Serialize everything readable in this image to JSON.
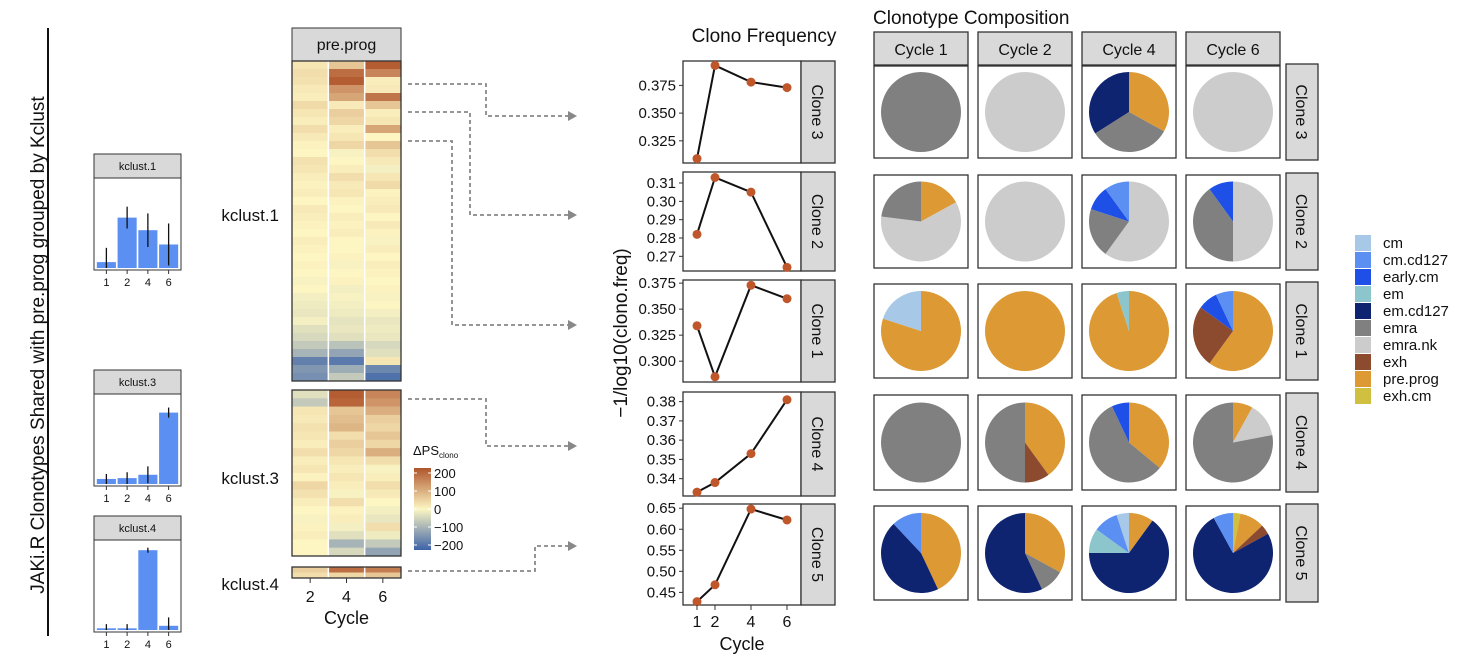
{
  "figure_title": "JAKi.R Clonotypes Shared with pre.prog grouped by Kclust",
  "colors": {
    "bar": "#5b8ff2",
    "point": "#c0572b",
    "strip_fill": "#d9d9d9",
    "heat_high": "#b0552b",
    "heat_mid": "#fdf6c3",
    "heat_low": "#3d63a8"
  },
  "chart_data": [
    {
      "type": "bar",
      "title": "kclust.1",
      "categories": [
        "1",
        "2",
        "4",
        "6"
      ],
      "values": [
        0.07,
        0.6,
        0.45,
        0.28
      ],
      "errors": [
        0.17,
        0.13,
        0.2,
        0.25
      ],
      "ylim": [
        0,
        1
      ]
    },
    {
      "type": "bar",
      "title": "kclust.3",
      "categories": [
        "1",
        "2",
        "4",
        "6"
      ],
      "values": [
        0.06,
        0.07,
        0.11,
        0.85
      ],
      "errors": [
        0.06,
        0.07,
        0.1,
        0.06
      ],
      "ylim": [
        0,
        1
      ]
    },
    {
      "type": "bar",
      "title": "kclust.4",
      "categories": [
        "1",
        "2",
        "4",
        "6"
      ],
      "values": [
        0.02,
        0.02,
        0.95,
        0.05
      ],
      "errors": [
        0.05,
        0.05,
        0.03,
        0.1
      ],
      "ylim": [
        0,
        1
      ]
    },
    {
      "type": "heatmap",
      "strip": "pre.prog",
      "xlabel": "Cycle",
      "x": [
        "2",
        "4",
        "6"
      ],
      "row_groups": [
        {
          "label": "kclust.1",
          "rows": 40
        },
        {
          "label": "kclust.3",
          "rows": 20
        },
        {
          "label": "kclust.4",
          "rows": 2
        }
      ],
      "legend_title": "ΔPS",
      "legend_title_sub": "clono",
      "legend_ticks": [
        "200",
        "100",
        "0",
        "−100",
        "−200"
      ],
      "range": [
        -200,
        200
      ],
      "values": [
        [
          20,
          60,
          190
        ],
        [
          30,
          170,
          140
        ],
        [
          25,
          190,
          10
        ],
        [
          15,
          120,
          15
        ],
        [
          10,
          100,
          160
        ],
        [
          35,
          15,
          60
        ],
        [
          20,
          50,
          10
        ],
        [
          10,
          40,
          20
        ],
        [
          30,
          10,
          100
        ],
        [
          15,
          20,
          0
        ],
        [
          5,
          40,
          60
        ],
        [
          0,
          -5,
          30
        ],
        [
          25,
          0,
          15
        ],
        [
          20,
          10,
          -10
        ],
        [
          10,
          30,
          20
        ],
        [
          5,
          15,
          35
        ],
        [
          10,
          20,
          5
        ],
        [
          0,
          5,
          10
        ],
        [
          15,
          0,
          15
        ],
        [
          10,
          10,
          0
        ],
        [
          5,
          5,
          15
        ],
        [
          0,
          10,
          5
        ],
        [
          10,
          0,
          -5
        ],
        [
          5,
          0,
          10
        ],
        [
          0,
          5,
          0
        ],
        [
          5,
          -5,
          10
        ],
        [
          0,
          0,
          5
        ],
        [
          -5,
          5,
          0
        ],
        [
          0,
          -10,
          5
        ],
        [
          -10,
          -5,
          -5
        ],
        [
          -15,
          -10,
          0
        ],
        [
          -20,
          -15,
          -10
        ],
        [
          -10,
          -25,
          -20
        ],
        [
          -30,
          -20,
          -15
        ],
        [
          -40,
          -30,
          -20
        ],
        [
          -60,
          -70,
          -40
        ],
        [
          -90,
          -110,
          -30
        ],
        [
          -160,
          -170,
          20
        ],
        [
          -130,
          -100,
          -150
        ],
        [
          -140,
          -60,
          -180
        ],
        [
          -30,
          190,
          140
        ],
        [
          -60,
          180,
          120
        ],
        [
          20,
          60,
          90
        ],
        [
          15,
          70,
          50
        ],
        [
          25,
          80,
          40
        ],
        [
          20,
          30,
          60
        ],
        [
          10,
          50,
          40
        ],
        [
          30,
          40,
          90
        ],
        [
          10,
          20,
          30
        ],
        [
          20,
          10,
          -5
        ],
        [
          5,
          20,
          10
        ],
        [
          40,
          10,
          30
        ],
        [
          25,
          -5,
          15
        ],
        [
          10,
          30,
          0
        ],
        [
          0,
          5,
          -10
        ],
        [
          -5,
          10,
          -20
        ],
        [
          5,
          -10,
          30
        ],
        [
          10,
          -30,
          -15
        ],
        [
          0,
          -90,
          -60
        ],
        [
          0,
          -40,
          -110
        ],
        [
          50,
          170,
          150
        ],
        [
          30,
          40,
          60
        ]
      ]
    },
    {
      "type": "line",
      "title": "Clono Frequency",
      "xlabel": "Cycle",
      "ylabel": "−1/log10(clono.freq)",
      "x": [
        1,
        2,
        4,
        6
      ],
      "panels": [
        {
          "strip": "Clone 3",
          "y": [
            0.309,
            0.393,
            0.378,
            0.373
          ],
          "ylim": [
            0.305,
            0.397
          ],
          "ticks": [
            "0.375",
            "0.350",
            "0.325"
          ],
          "tick_values": [
            0.375,
            0.35,
            0.325
          ]
        },
        {
          "strip": "Clone 2",
          "y": [
            0.282,
            0.313,
            0.305,
            0.264
          ],
          "ylim": [
            0.262,
            0.316
          ],
          "ticks": [
            "0.31",
            "0.30",
            "0.29",
            "0.28",
            "0.27"
          ],
          "tick_values": [
            0.31,
            0.3,
            0.29,
            0.28,
            0.27
          ]
        },
        {
          "strip": "Clone 1",
          "y": [
            0.334,
            0.285,
            0.373,
            0.36
          ],
          "ylim": [
            0.28,
            0.378
          ],
          "ticks": [
            "0.375",
            "0.350",
            "0.325",
            "0.300"
          ],
          "tick_values": [
            0.375,
            0.35,
            0.325,
            0.3
          ]
        },
        {
          "strip": "Clone 4",
          "y": [
            0.333,
            0.338,
            0.353,
            0.381
          ],
          "ylim": [
            0.331,
            0.385
          ],
          "ticks": [
            "0.38",
            "0.37",
            "0.36",
            "0.35",
            "0.34"
          ],
          "tick_values": [
            0.38,
            0.37,
            0.36,
            0.35,
            0.34
          ]
        },
        {
          "strip": "Clone 5",
          "y": [
            0.428,
            0.468,
            0.648,
            0.622
          ],
          "ylim": [
            0.42,
            0.66
          ],
          "ticks": [
            "0.65",
            "0.60",
            "0.55",
            "0.50",
            "0.45"
          ],
          "tick_values": [
            0.65,
            0.6,
            0.55,
            0.5,
            0.45
          ]
        }
      ]
    },
    {
      "type": "pie",
      "title": "Clonotype Composition",
      "columns": [
        "Cycle 1",
        "Cycle 2",
        "Cycle 4",
        "Cycle 6"
      ],
      "rows": [
        "Clone 3",
        "Clone 2",
        "Clone 1",
        "Clone 4",
        "Clone 5"
      ],
      "legend": [
        {
          "label": "cm",
          "color": "#a8c8e8"
        },
        {
          "label": "cm.cd127",
          "color": "#5b8ff2"
        },
        {
          "label": "early.cm",
          "color": "#1e50e8"
        },
        {
          "label": "em",
          "color": "#8cc6cc"
        },
        {
          "label": "em.cd127",
          "color": "#0f2470"
        },
        {
          "label": "emra",
          "color": "#808080"
        },
        {
          "label": "emra.nk",
          "color": "#cccccc"
        },
        {
          "label": "exh",
          "color": "#8c4a2f"
        },
        {
          "label": "pre.prog",
          "color": "#dd9933"
        },
        {
          "label": "exh.cm",
          "color": "#cfc040"
        }
      ],
      "slices": [
        [
          [
            {
              "type": "emra",
              "value": 1
            }
          ],
          [
            {
              "type": "emra.nk",
              "value": 1
            }
          ],
          [
            {
              "type": "pre.prog",
              "value": 0.33
            },
            {
              "type": "emra",
              "value": 0.33
            },
            {
              "type": "em.cd127",
              "value": 0.34
            }
          ],
          [
            {
              "type": "emra.nk",
              "value": 1
            }
          ]
        ],
        [
          [
            {
              "type": "pre.prog",
              "value": 0.17
            },
            {
              "type": "emra.nk",
              "value": 0.6
            },
            {
              "type": "emra",
              "value": 0.23
            }
          ],
          [
            {
              "type": "emra.nk",
              "value": 1
            }
          ],
          [
            {
              "type": "emra.nk",
              "value": 0.6
            },
            {
              "type": "emra",
              "value": 0.2
            },
            {
              "type": "early.cm",
              "value": 0.1
            },
            {
              "type": "cm.cd127",
              "value": 0.1
            }
          ],
          [
            {
              "type": "emra.nk",
              "value": 0.5
            },
            {
              "type": "emra",
              "value": 0.4
            },
            {
              "type": "early.cm",
              "value": 0.1
            }
          ]
        ],
        [
          [
            {
              "type": "pre.prog",
              "value": 0.8
            },
            {
              "type": "cm",
              "value": 0.2
            }
          ],
          [
            {
              "type": "pre.prog",
              "value": 1
            }
          ],
          [
            {
              "type": "pre.prog",
              "value": 0.95
            },
            {
              "type": "em",
              "value": 0.05
            }
          ],
          [
            {
              "type": "pre.prog",
              "value": 0.6
            },
            {
              "type": "exh",
              "value": 0.25
            },
            {
              "type": "early.cm",
              "value": 0.08
            },
            {
              "type": "cm.cd127",
              "value": 0.07
            }
          ]
        ],
        [
          [
            {
              "type": "emra",
              "value": 1
            }
          ],
          [
            {
              "type": "pre.prog",
              "value": 0.4
            },
            {
              "type": "exh",
              "value": 0.1
            },
            {
              "type": "emra",
              "value": 0.5
            }
          ],
          [
            {
              "type": "pre.prog",
              "value": 0.36
            },
            {
              "type": "emra",
              "value": 0.57
            },
            {
              "type": "early.cm",
              "value": 0.07
            }
          ],
          [
            {
              "type": "pre.prog",
              "value": 0.08
            },
            {
              "type": "emra.nk",
              "value": 0.14
            },
            {
              "type": "emra",
              "value": 0.78
            }
          ]
        ],
        [
          [
            {
              "type": "pre.prog",
              "value": 0.43
            },
            {
              "type": "em.cd127",
              "value": 0.45
            },
            {
              "type": "cm.cd127",
              "value": 0.12
            }
          ],
          [
            {
              "type": "pre.prog",
              "value": 0.33
            },
            {
              "type": "emra",
              "value": 0.1
            },
            {
              "type": "em.cd127",
              "value": 0.57
            }
          ],
          [
            {
              "type": "pre.prog",
              "value": 0.1
            },
            {
              "type": "em.cd127",
              "value": 0.65
            },
            {
              "type": "em",
              "value": 0.1
            },
            {
              "type": "cm.cd127",
              "value": 0.1
            },
            {
              "type": "cm",
              "value": 0.05
            }
          ],
          [
            {
              "type": "exh.cm",
              "value": 0.03
            },
            {
              "type": "pre.prog",
              "value": 0.1
            },
            {
              "type": "exh",
              "value": 0.04
            },
            {
              "type": "em.cd127",
              "value": 0.75
            },
            {
              "type": "cm.cd127",
              "value": 0.08
            }
          ]
        ]
      ]
    }
  ]
}
